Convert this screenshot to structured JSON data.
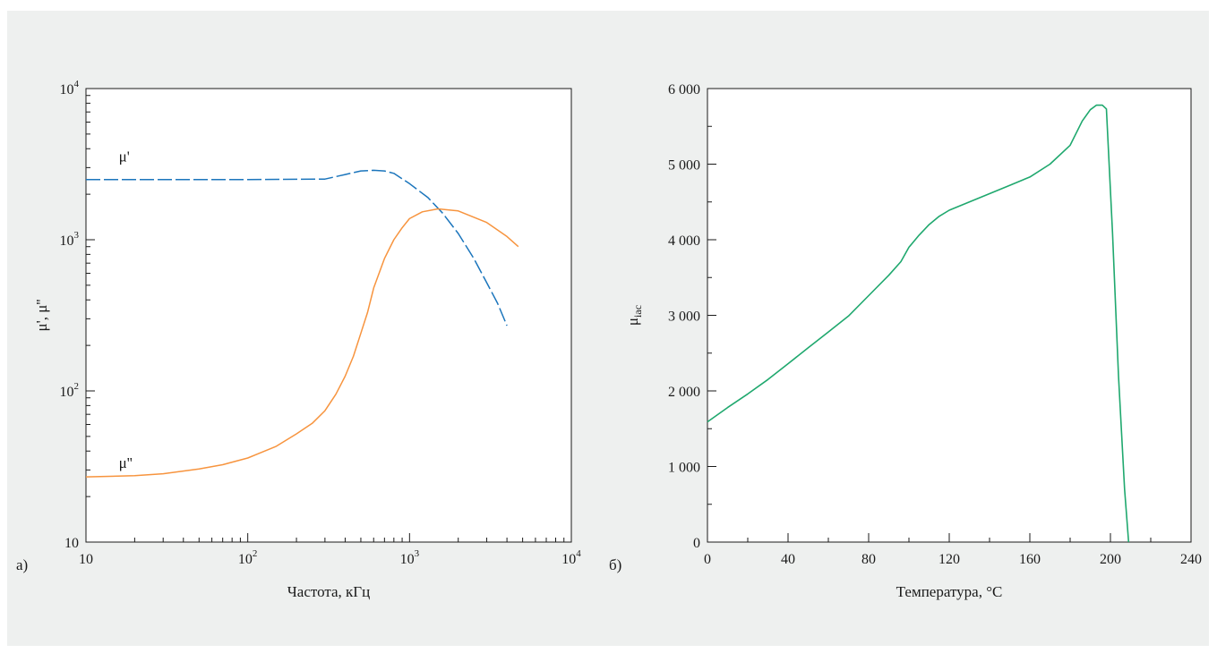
{
  "chart_data": [
    {
      "panel_label": "а)",
      "type": "line",
      "xlabel": "Частота, кГц",
      "ylabel": "μ', μ''",
      "xscale": "log",
      "yscale": "log",
      "xlim": [
        10,
        10000
      ],
      "ylim": [
        10,
        10000
      ],
      "x_ticks": [
        {
          "value": 10,
          "base": "10",
          "exp": ""
        },
        {
          "value": 100,
          "base": "10",
          "exp": "2"
        },
        {
          "value": 1000,
          "base": "10",
          "exp": "3"
        },
        {
          "value": 10000,
          "base": "10",
          "exp": "4"
        }
      ],
      "y_ticks": [
        {
          "value": 10,
          "base": "10",
          "exp": ""
        },
        {
          "value": 100,
          "base": "10",
          "exp": "2"
        },
        {
          "value": 1000,
          "base": "10",
          "exp": "3"
        },
        {
          "value": 10000,
          "base": "10",
          "exp": "4"
        }
      ],
      "grid": false,
      "series": [
        {
          "name": "μ'",
          "color": "#1b75bc",
          "style": "dashed",
          "label_at": [
            13,
            3300
          ],
          "x": [
            10,
            100,
            300,
            400,
            500,
            600,
            700,
            800,
            1000,
            1300,
            1600,
            2000,
            2500,
            3000,
            3500,
            4000
          ],
          "y": [
            2500,
            2500,
            2520,
            2700,
            2850,
            2880,
            2850,
            2750,
            2350,
            1900,
            1500,
            1100,
            750,
            520,
            380,
            270
          ]
        },
        {
          "name": "μ''",
          "color": "#f7943e",
          "style": "solid",
          "label_at": [
            13,
            31
          ],
          "x": [
            10,
            20,
            30,
            50,
            70,
            100,
            150,
            200,
            250,
            300,
            350,
            400,
            450,
            500,
            550,
            600,
            700,
            800,
            900,
            1000,
            1200,
            1500,
            2000,
            3000,
            4000,
            4700
          ],
          "y": [
            27,
            27.5,
            28.3,
            30.5,
            32.5,
            36,
            43,
            52,
            61,
            74,
            95,
            125,
            170,
            240,
            330,
            480,
            750,
            1000,
            1200,
            1380,
            1530,
            1600,
            1550,
            1300,
            1050,
            900
          ]
        }
      ]
    },
    {
      "panel_label": "б)",
      "type": "line",
      "xlabel": "Температура, °C",
      "ylabel": "μiac",
      "ylabel_main": "μ",
      "ylabel_sub": "iac",
      "xlim": [
        0,
        240
      ],
      "ylim": [
        0,
        6000
      ],
      "x_ticks": [
        {
          "value": 0,
          "label": "0"
        },
        {
          "value": 40,
          "label": "40"
        },
        {
          "value": 80,
          "label": "80"
        },
        {
          "value": 120,
          "label": "120"
        },
        {
          "value": 160,
          "label": "160"
        },
        {
          "value": 200,
          "label": "200"
        },
        {
          "value": 240,
          "label": "240"
        }
      ],
      "y_ticks": [
        {
          "value": 0,
          "label": "0"
        },
        {
          "value": 1000,
          "label": "1 000"
        },
        {
          "value": 2000,
          "label": "2 000"
        },
        {
          "value": 3000,
          "label": "3 000"
        },
        {
          "value": 4000,
          "label": "4 000"
        },
        {
          "value": 5000,
          "label": "5 000"
        },
        {
          "value": 6000,
          "label": "6 000"
        }
      ],
      "grid": false,
      "series": [
        {
          "color": "#1fa86e",
          "style": "solid",
          "x": [
            0,
            10,
            20,
            30,
            40,
            50,
            60,
            70,
            80,
            90,
            96,
            100,
            105,
            110,
            115,
            120,
            130,
            140,
            150,
            160,
            170,
            180,
            186,
            190,
            193,
            196,
            198,
            201,
            204,
            207,
            209
          ],
          "y": [
            1590,
            1780,
            1960,
            2150,
            2360,
            2570,
            2780,
            2990,
            3260,
            3530,
            3710,
            3900,
            4060,
            4200,
            4310,
            4390,
            4500,
            4610,
            4720,
            4830,
            5000,
            5250,
            5570,
            5720,
            5780,
            5780,
            5730,
            4100,
            2200,
            700,
            0
          ]
        }
      ]
    }
  ]
}
